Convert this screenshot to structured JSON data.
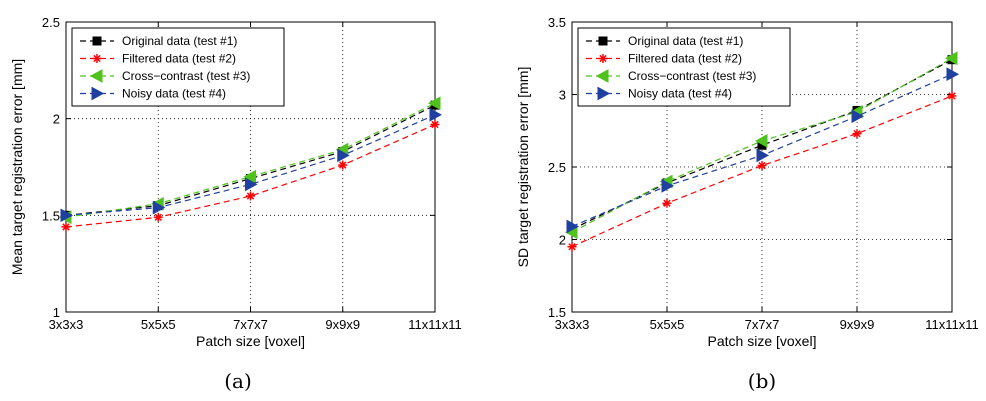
{
  "chart_data": [
    {
      "type": "line",
      "caption": "(a)",
      "xlabel": "Patch size [voxel]",
      "ylabel": "Mean target registration error [mm]",
      "categories": [
        "3x3x3",
        "5x5x5",
        "7x7x7",
        "9x9x9",
        "11x11x11"
      ],
      "ylim": [
        1,
        2.5
      ],
      "yticks": [
        "1",
        "1.5",
        "2",
        "2.5"
      ],
      "grid": true,
      "legend_position": "top-left",
      "series": [
        {
          "name": "Original data (test #1)",
          "color": "#000000",
          "marker": "square",
          "values": [
            1.5,
            1.55,
            1.69,
            1.83,
            2.07
          ]
        },
        {
          "name": "Filtered data (test #2)",
          "color": "#ff0000",
          "marker": "asterisk",
          "values": [
            1.44,
            1.49,
            1.6,
            1.76,
            1.97
          ]
        },
        {
          "name": "Cross−contrast (test #3)",
          "color": "#4fc21e",
          "marker": "triangle-left",
          "values": [
            1.49,
            1.56,
            1.7,
            1.84,
            2.08
          ]
        },
        {
          "name": "Noisy data (test #4)",
          "color": "#2040a0",
          "marker": "triangle-right",
          "values": [
            1.5,
            1.54,
            1.66,
            1.81,
            2.02
          ]
        }
      ]
    },
    {
      "type": "line",
      "caption": "(b)",
      "xlabel": "Patch size [voxel]",
      "ylabel": "SD target registration error [mm]",
      "categories": [
        "3x3x3",
        "5x5x5",
        "7x7x7",
        "9x9x9",
        "11x11x11"
      ],
      "ylim": [
        1.5,
        3.5
      ],
      "yticks": [
        "1.5",
        "2",
        "2.5",
        "3",
        "3.5"
      ],
      "grid": true,
      "legend_position": "top-left",
      "series": [
        {
          "name": "Original data (test #1)",
          "color": "#000000",
          "marker": "square",
          "values": [
            2.07,
            2.39,
            2.65,
            2.89,
            3.24
          ]
        },
        {
          "name": "Filtered data (test #2)",
          "color": "#ff0000",
          "marker": "asterisk",
          "values": [
            1.95,
            2.25,
            2.51,
            2.73,
            2.99
          ]
        },
        {
          "name": "Cross−contrast (test #3)",
          "color": "#4fc21e",
          "marker": "triangle-left",
          "values": [
            2.05,
            2.4,
            2.68,
            2.88,
            3.25
          ]
        },
        {
          "name": "Noisy data (test #4)",
          "color": "#2040a0",
          "marker": "triangle-right",
          "values": [
            2.09,
            2.37,
            2.58,
            2.85,
            3.14
          ]
        }
      ]
    }
  ]
}
